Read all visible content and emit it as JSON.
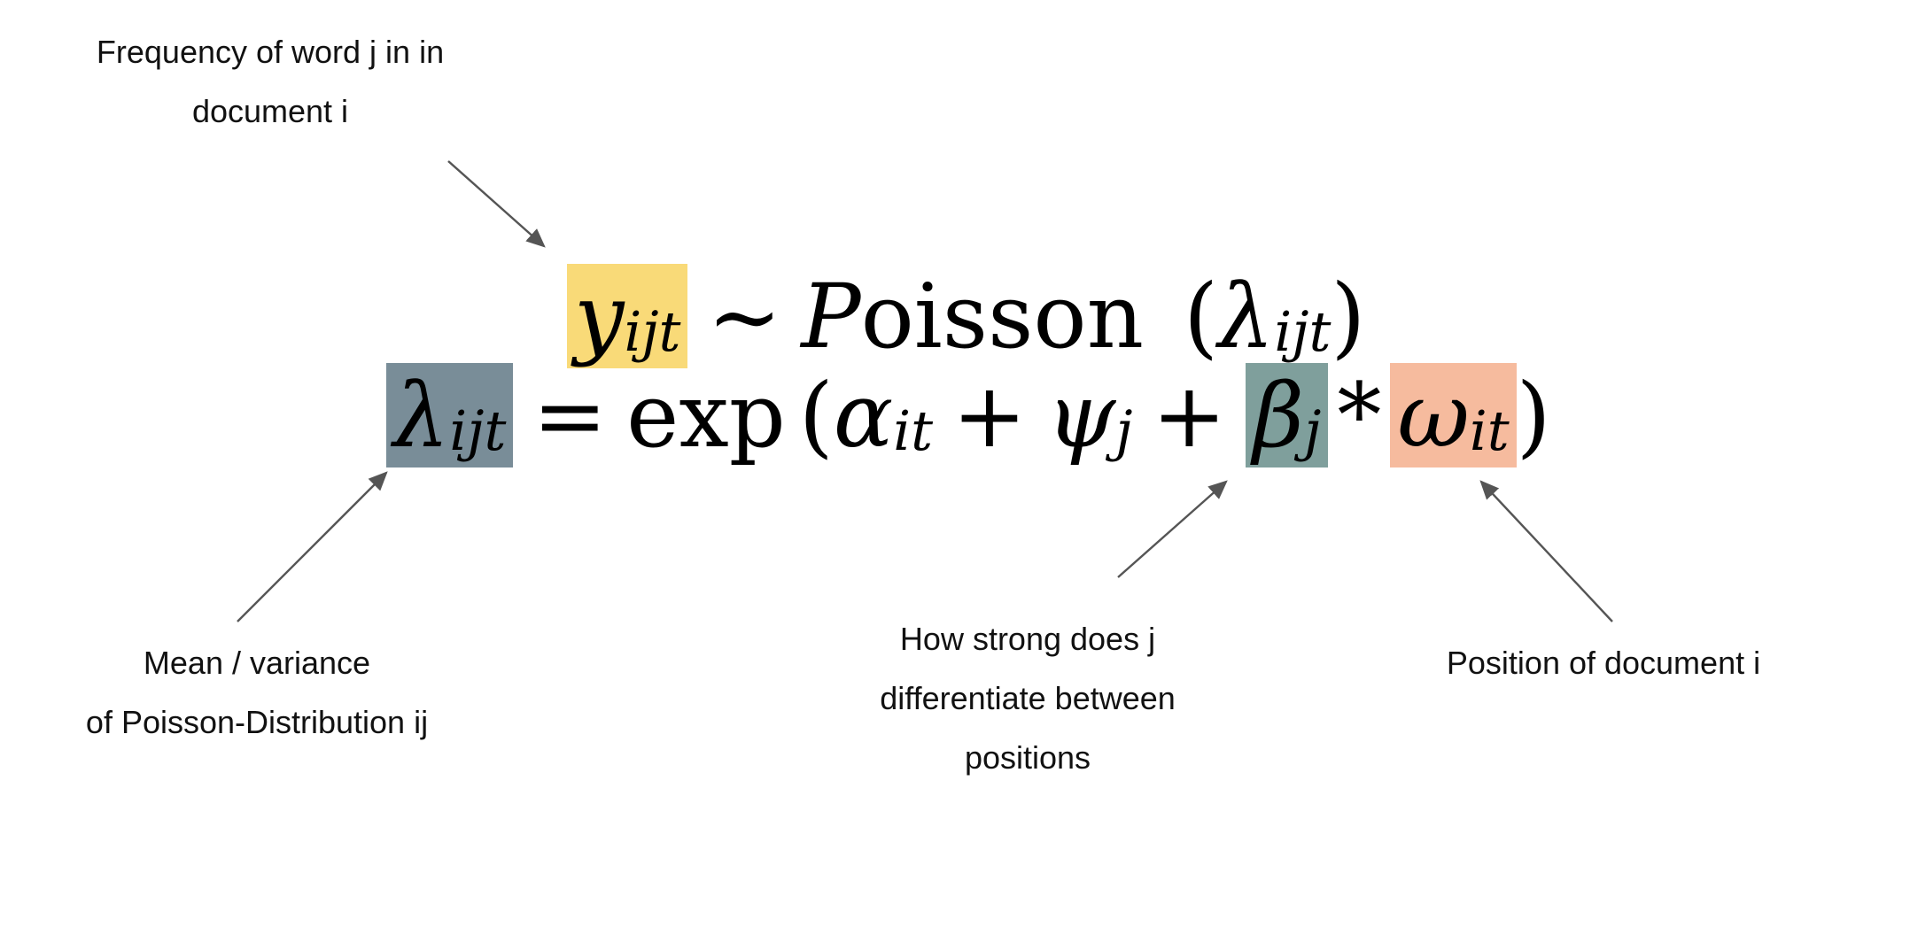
{
  "labels": {
    "frequency": [
      "Frequency of word j in in",
      "document i"
    ],
    "mean": [
      "Mean / variance",
      "of Poisson-Distribution ij"
    ],
    "strength": [
      "How strong does j",
      "differentiate between",
      "positions"
    ],
    "position": [
      "Position of document i"
    ]
  },
  "equation1": {
    "y": "y",
    "y_sub": "ijt",
    "tilde": "∼",
    "P": "P",
    "oisson": "oisson",
    "open": "(",
    "lambda": "λ",
    "lambda_sub": "ijt",
    "close": ")"
  },
  "equation2": {
    "lambda": "λ",
    "lambda_sub": "ijt",
    "eq": "=",
    "exp": "exp",
    "open": "(",
    "alpha": "α",
    "alpha_sub": "it",
    "plus1": "+",
    "psi": "ψ",
    "psi_sub": "j",
    "plus2": "+",
    "beta": "β",
    "beta_sub": "j",
    "times": "*",
    "omega": "ω",
    "omega_sub": "it",
    "close": ")"
  },
  "colors": {
    "y_box": "#F9DA78",
    "lambda_box": "#798D98",
    "beta_box": "#7F9F9C",
    "omega_box": "#F6BB9E",
    "arrow": "#555555"
  }
}
